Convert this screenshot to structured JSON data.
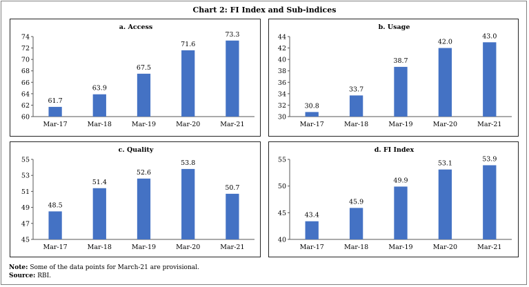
{
  "title": "Chart 2: FI Index and Sub-indices",
  "note_label": "Note:",
  "note_text": "Some of the data points for March-21 are provisional.",
  "source_label": "Source:",
  "source_text": "RBI.",
  "colors": {
    "bar": "#4472C4"
  },
  "chart_data": [
    {
      "type": "bar",
      "title": "a. Access",
      "categories": [
        "Mar-17",
        "Mar-18",
        "Mar-19",
        "Mar-20",
        "Mar-21"
      ],
      "values": [
        61.7,
        63.9,
        67.5,
        71.6,
        73.3
      ],
      "value_labels": [
        "61.7",
        "63.9",
        "67.5",
        "71.6",
        "73.3"
      ],
      "ylim": [
        60,
        74
      ],
      "yticks": [
        "60",
        "62",
        "64",
        "66",
        "68",
        "70",
        "72",
        "74"
      ],
      "grid": false
    },
    {
      "type": "bar",
      "title": "b. Usage",
      "categories": [
        "Mar-17",
        "Mar-18",
        "Mar-19",
        "Mar-20",
        "Mar-21"
      ],
      "values": [
        30.8,
        33.7,
        38.7,
        42.0,
        43.0
      ],
      "value_labels": [
        "30.8",
        "33.7",
        "38.7",
        "42.0",
        "43.0"
      ],
      "ylim": [
        30,
        44
      ],
      "yticks": [
        "30",
        "32",
        "34",
        "36",
        "38",
        "40",
        "42",
        "44"
      ],
      "grid": false
    },
    {
      "type": "bar",
      "title": "c. Quality",
      "categories": [
        "Mar-17",
        "Mar-18",
        "Mar-19",
        "Mar-20",
        "Mar-21"
      ],
      "values": [
        48.5,
        51.4,
        52.6,
        53.8,
        50.7
      ],
      "value_labels": [
        "48.5",
        "51.4",
        "52.6",
        "53.8",
        "50.7"
      ],
      "ylim": [
        45,
        55
      ],
      "yticks": [
        "45",
        "47",
        "49",
        "51",
        "53",
        "55"
      ],
      "grid": false
    },
    {
      "type": "bar",
      "title": "d. FI Index",
      "categories": [
        "Mar-17",
        "Mar-18",
        "Mar-19",
        "Mar-20",
        "Mar-21"
      ],
      "values": [
        43.4,
        45.9,
        49.9,
        53.1,
        53.9
      ],
      "value_labels": [
        "43.4",
        "45.9",
        "49.9",
        "53.1",
        "53.9"
      ],
      "ylim": [
        40,
        55
      ],
      "yticks": [
        "40",
        "45",
        "50",
        "55"
      ],
      "grid": false
    }
  ]
}
